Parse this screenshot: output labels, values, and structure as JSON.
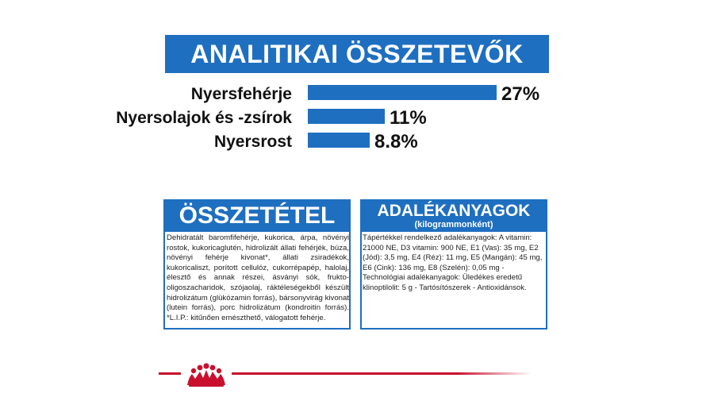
{
  "analytic_title": "ANALITIKAI ÖSSZETEVŐK",
  "chart_data": {
    "type": "bar",
    "orientation": "horizontal",
    "categories": [
      "Nyersfehérje",
      "Nyersolajok és -zsírok",
      "Nyersrost"
    ],
    "values": [
      27,
      11,
      8.8
    ],
    "value_labels": [
      "27%",
      "11%",
      "8.8%"
    ],
    "unit": "%",
    "title": "ANALITIKAI ÖSSZETEVŐK",
    "xlabel": "",
    "ylabel": "",
    "xlim": [
      0,
      27
    ],
    "color": "#1f6fc0"
  },
  "composition": {
    "title": "ÖSSZETÉTEL",
    "text": "Dehidratált baromfifehérje, kukorica, árpa, növényi rostok, kukoricaglutén, hidrolizált állati fehérjék, búza, növényi fehérje kivonat*, állati zsiradékok, kukoricaliszt, porított cellulóz, cukorrépapép, halolaj, élesztő és annak részei, ásványi sók, frukto-oligoszacharidok, szójaolaj, ráktéleségekből készült hidrolizátum (glükózamin forrás), bársonyvirág kivonat (lutein forrás), porc hidrolizátum (kondroitin forrás). *L.I.P.: kitűnően emészthető, válogatott fehérje."
  },
  "additives": {
    "title": "ADALÉKANYAGOK",
    "subtitle": "(kilogrammonként)",
    "text": "Tápértékkel rendelkező adalékanyagok: A vitamin: 21000 NE, D3 vitamin: 900 NE, E1 (Vas): 35 mg, E2 (Jód): 3,5 mg, E4 (Réz): 11 mg, E5 (Mangán): 45 mg, E6 (Cink): 136 mg, E8 (Szelén): 0,05 mg - Technológiai adalékanyagok: Üledékes eredetű klinoptilolit: 5 g - Tartósítószerek - Antioxidánsok."
  },
  "colors": {
    "brand_blue": "#1f6fc0",
    "footer_red": "#c8102e"
  },
  "footer_logo_icon": "royal-canin-crown-icon"
}
